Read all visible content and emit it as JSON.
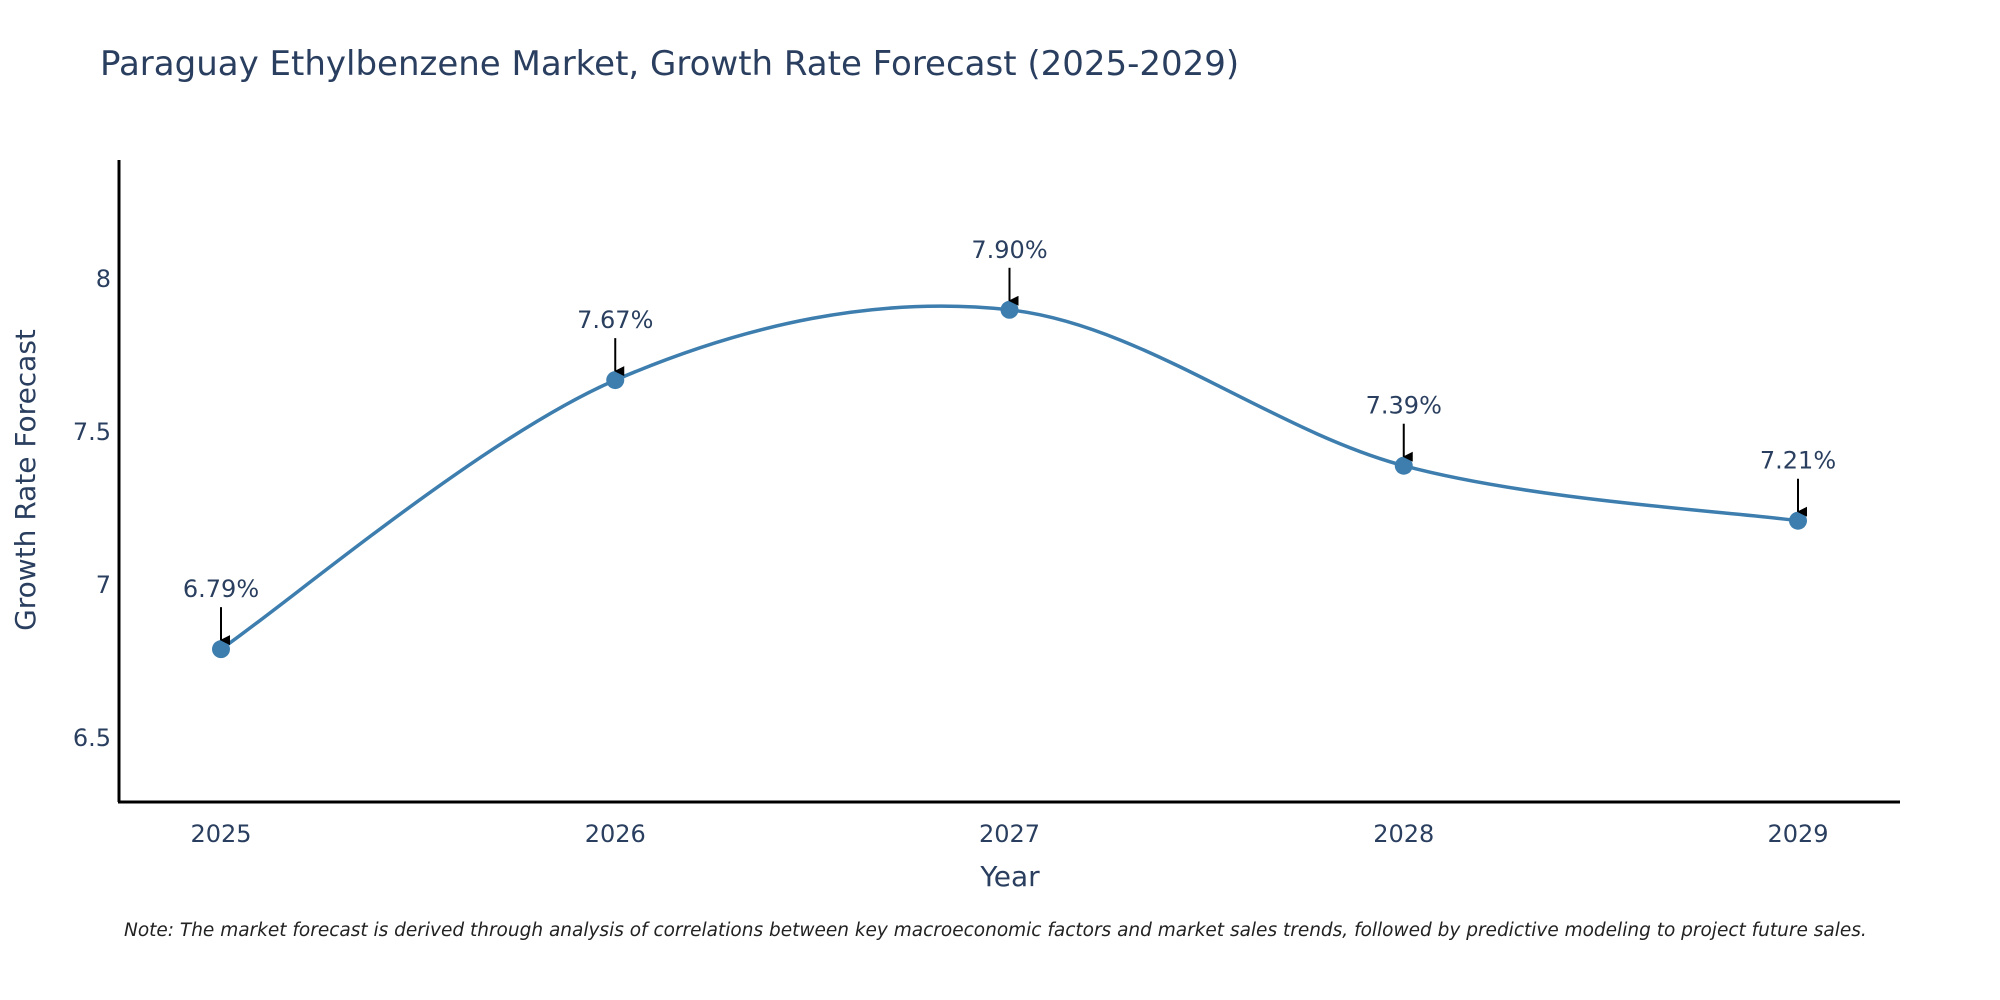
{
  "chart_data": {
    "type": "line",
    "title": "Paraguay Ethylbenzene Market, Growth Rate Forecast (2025-2029)",
    "xlabel": "Year",
    "ylabel": "Growth Rate Forecast",
    "categories": [
      "2025",
      "2026",
      "2027",
      "2028",
      "2029"
    ],
    "values": [
      6.79,
      7.67,
      7.9,
      7.39,
      7.21
    ],
    "data_labels": [
      "6.79%",
      "7.67%",
      "7.90%",
      "7.39%",
      "7.21%"
    ],
    "y_ticks": [
      6.5,
      7,
      7.5,
      8
    ],
    "y_tick_labels": [
      "6.5",
      "7",
      "7.5",
      "8"
    ],
    "ylim": [
      6.29,
      8.39
    ],
    "grid": false,
    "line_color": "#3d7eaf",
    "marker_color": "#3d7eaf",
    "arrow_color": "#000000",
    "note": "Note: The market forecast is derived through analysis of correlations between key macroeconomic factors and market sales trends, followed by predictive modeling to project future sales."
  }
}
